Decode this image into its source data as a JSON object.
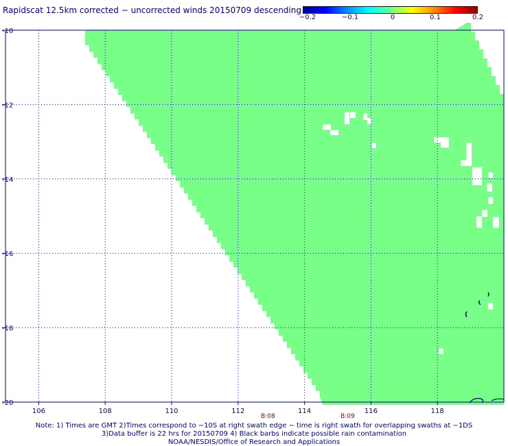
{
  "title": "Rapidscat 12.5km corrected − uncorrected winds 20150709 descending",
  "colorbar": {
    "min": -0.2,
    "max": 0.2,
    "labels": [
      "−0.2",
      "−0.1",
      "0",
      "0.1",
      "0.2"
    ],
    "colors": [
      "#000090",
      "#0000ff",
      "#0090ff",
      "#00ffff",
      "#70ff90",
      "#ffff00",
      "#ff9000",
      "#ff0000",
      "#900000"
    ]
  },
  "map": {
    "lon_range": [
      105,
      120
    ],
    "lat_range": [
      -20,
      -10
    ],
    "lat_labels": [
      "-10",
      "-12",
      "-14",
      "-16",
      "-18",
      "-20"
    ],
    "lon_labels": [
      "106",
      "108",
      "110",
      "112",
      "114",
      "116",
      "118"
    ],
    "swath_color": "#78ff88",
    "grid": true
  },
  "time_labels": [
    {
      "text": "B:08",
      "lon": 112.9
    },
    {
      "text": "B:09",
      "lon": 115.3
    }
  ],
  "notes": [
    "Note: 1) Times are GMT 2)Times correspond to −10S at right swath edge − time is right swath for overlapping swaths at −1DS",
    "3)Data buffer is 22 hrs for 20150709 4) Black barbs indicate possible rain contamination",
    "NOAA/NESDIS/Office of Research and Applications"
  ]
}
